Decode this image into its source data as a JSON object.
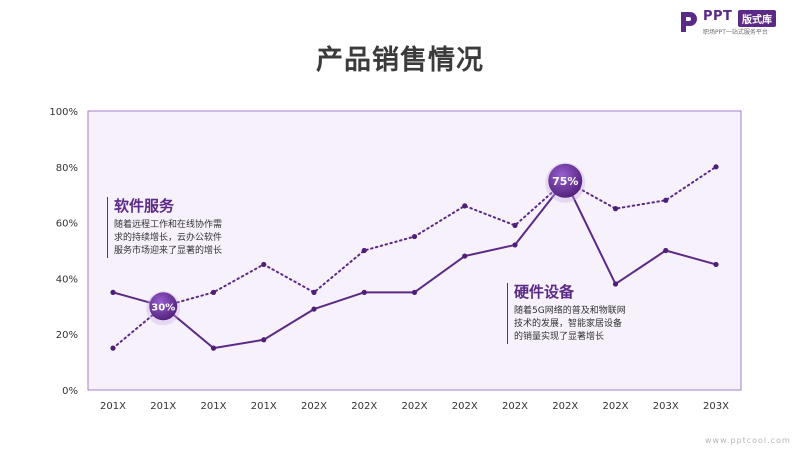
{
  "title": "产品销售情况",
  "logo": {
    "brand": "PPT",
    "badge": "版式库",
    "tagline": "职场PPT一站式服务平台"
  },
  "watermark": "www.pptcool.com",
  "colors": {
    "accent": "#5b2a86",
    "plot_background": "#f6f1fb",
    "frame": "#a57fc8"
  },
  "annotations": [
    {
      "title": "软件服务",
      "lines": [
        "随着远程工作和在线协作需",
        "求的持续增长，云办公软件",
        "服务市场迎来了显著的增长"
      ]
    },
    {
      "title": "硬件设备",
      "lines": [
        "随着5G网络的普及和物联网",
        "技术的发展，智能家居设备",
        "的销量实现了显著增长"
      ]
    }
  ],
  "chart_data": {
    "type": "line",
    "title": "产品销售情况",
    "xlabel": "",
    "ylabel": "",
    "categories": [
      "201X",
      "201X",
      "201X",
      "201X",
      "202X",
      "202X",
      "202X",
      "202X",
      "202X",
      "202X",
      "202X",
      "203X",
      "203X"
    ],
    "ylim": [
      0,
      100
    ],
    "yticks": [
      "0%",
      "20%",
      "40%",
      "60%",
      "80%",
      "100%"
    ],
    "grid": false,
    "series": [
      {
        "style": "solid",
        "values": [
          35,
          30,
          15,
          18,
          29,
          35,
          35,
          48,
          52,
          75,
          38,
          50,
          45
        ]
      },
      {
        "style": "dotted",
        "values": [
          15,
          30,
          35,
          45,
          35,
          50,
          55,
          66,
          59,
          75,
          65,
          68,
          80
        ]
      }
    ],
    "highlights": [
      {
        "label": "30%",
        "index": 1,
        "value": 30
      },
      {
        "label": "75%",
        "index": 9,
        "value": 75
      }
    ]
  }
}
